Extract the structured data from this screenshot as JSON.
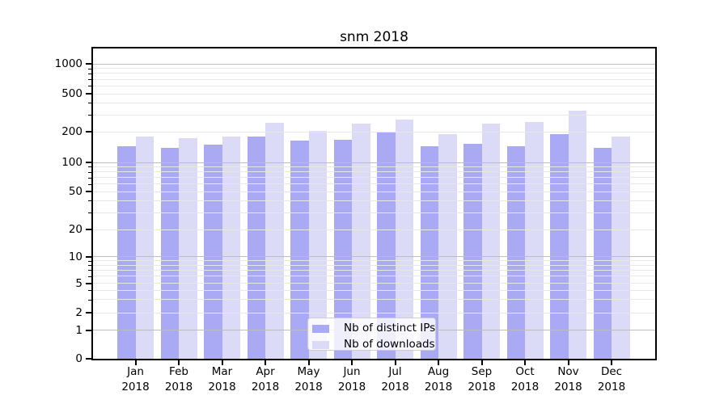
{
  "chart_data": {
    "type": "bar",
    "title": "snm 2018",
    "y_axis": {
      "scale": "symlog",
      "ticks": [
        0,
        1,
        2,
        5,
        10,
        20,
        50,
        100,
        200,
        500,
        1000
      ],
      "major_ticks": [
        1,
        10,
        100,
        1000
      ],
      "grid": "on",
      "ylim": [
        0,
        1400
      ]
    },
    "categories": [
      {
        "month": "Jan",
        "year": "2018"
      },
      {
        "month": "Feb",
        "year": "2018"
      },
      {
        "month": "Mar",
        "year": "2018"
      },
      {
        "month": "Apr",
        "year": "2018"
      },
      {
        "month": "May",
        "year": "2018"
      },
      {
        "month": "Jun",
        "year": "2018"
      },
      {
        "month": "Jul",
        "year": "2018"
      },
      {
        "month": "Aug",
        "year": "2018"
      },
      {
        "month": "Sep",
        "year": "2018"
      },
      {
        "month": "Oct",
        "year": "2018"
      },
      {
        "month": "Nov",
        "year": "2018"
      },
      {
        "month": "Dec",
        "year": "2018"
      }
    ],
    "series": [
      {
        "name": "Nb of distinct IPs",
        "color": "#a9a9f4",
        "values": [
          145,
          140,
          150,
          179,
          165,
          167,
          200,
          145,
          153,
          145,
          188,
          139
        ]
      },
      {
        "name": "Nb of downloads",
        "color": "#dbdbf8",
        "values": [
          180,
          172,
          178,
          247,
          203,
          243,
          268,
          190,
          244,
          254,
          335,
          180
        ]
      }
    ],
    "legend": {
      "position": "inside-bottom-center"
    }
  }
}
